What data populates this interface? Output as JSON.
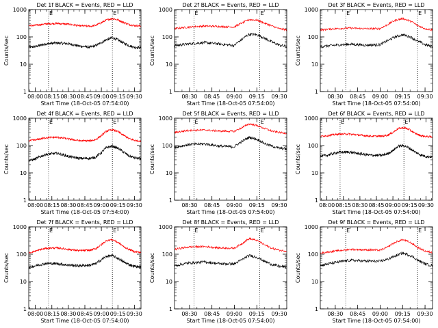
{
  "figure": {
    "xlabel": "Start Time (18-Oct-05 07:54:00)",
    "ylabel": "Counts/sec",
    "colors": {
      "events": "#000000",
      "lld": "#ff0000",
      "axes": "#000000",
      "background": "#ffffff"
    }
  },
  "chart_data": [
    {
      "type": "line",
      "title": "Det 1f BLACK = Events, RED = LLD",
      "xlabel": "Start Time (18-Oct-05 07:54:00)",
      "ylabel": "Counts/sec",
      "xlim": [
        "07:54",
        "09:36"
      ],
      "ylim": [
        1,
        1000
      ],
      "yscale": "log",
      "xticks": [
        "08:00",
        "08:15",
        "08:30",
        "08:45",
        "09:00",
        "09:15",
        "09:30"
      ],
      "yticks": [
        "1",
        "10",
        "100",
        "1000"
      ],
      "markers": [
        {
          "time": "08:12",
          "label": "E"
        },
        {
          "time": "09:10",
          "label": "E"
        }
      ],
      "x": [
        "07:54",
        "08:00",
        "08:10",
        "08:20",
        "08:30",
        "08:40",
        "08:50",
        "08:55",
        "09:00",
        "09:05",
        "09:10",
        "09:15",
        "09:20",
        "09:25",
        "09:30",
        "09:36"
      ],
      "series": [
        {
          "name": "Events",
          "color": "#000000",
          "values": [
            42,
            44,
            56,
            60,
            56,
            46,
            42,
            48,
            62,
            80,
            92,
            78,
            60,
            48,
            42,
            40
          ]
        },
        {
          "name": "LLD",
          "color": "#ff0000",
          "values": [
            255,
            265,
            300,
            310,
            290,
            255,
            245,
            265,
            330,
            420,
            470,
            420,
            340,
            285,
            260,
            250
          ]
        }
      ]
    },
    {
      "type": "line",
      "title": "Det 2f BLACK = Events, RED = LLD",
      "xlabel": "Start Time (18-Oct-05 07:54:00)",
      "ylabel": "Counts/sec",
      "xlim": [
        "08:20",
        "09:35"
      ],
      "ylim": [
        1,
        1000
      ],
      "yscale": "log",
      "xticks": [
        "08:30",
        "08:45",
        "09:00",
        "09:15",
        "09:30"
      ],
      "yticks": [
        "1",
        "10",
        "100",
        "1000"
      ],
      "markers": [
        {
          "time": "08:33",
          "label": "E"
        },
        {
          "time": "09:17",
          "label": "E"
        }
      ],
      "x": [
        "08:20",
        "08:30",
        "08:40",
        "08:50",
        "09:00",
        "09:05",
        "09:10",
        "09:15",
        "09:20",
        "09:25",
        "09:30",
        "09:35"
      ],
      "series": [
        {
          "name": "Events",
          "color": "#000000",
          "values": [
            48,
            56,
            62,
            55,
            48,
            80,
            125,
            120,
            90,
            65,
            50,
            44
          ]
        },
        {
          "name": "LLD",
          "color": "#ff0000",
          "values": [
            200,
            230,
            250,
            240,
            230,
            320,
            430,
            410,
            320,
            250,
            200,
            180
          ]
        }
      ]
    },
    {
      "type": "line",
      "title": "Det 3f BLACK = Events, RED = LLD",
      "xlabel": "Start Time (18-Oct-05 07:54:00)",
      "ylabel": "Counts/sec",
      "xlim": [
        "08:20",
        "09:35"
      ],
      "ylim": [
        1,
        1000
      ],
      "yscale": "log",
      "xticks": [
        "08:30",
        "08:45",
        "09:00",
        "09:15",
        "09:30"
      ],
      "yticks": [
        "1",
        "10",
        "100",
        "1000"
      ],
      "markers": [
        {
          "time": "08:37",
          "label": "E"
        },
        {
          "time": "09:25",
          "label": "E"
        }
      ],
      "x": [
        "08:20",
        "08:30",
        "08:40",
        "08:50",
        "09:00",
        "09:05",
        "09:10",
        "09:15",
        "09:20",
        "09:25",
        "09:30",
        "09:35"
      ],
      "series": [
        {
          "name": "Events",
          "color": "#000000",
          "values": [
            44,
            50,
            54,
            50,
            52,
            72,
            100,
            120,
            100,
            70,
            52,
            44
          ]
        },
        {
          "name": "LLD",
          "color": "#ff0000",
          "values": [
            180,
            200,
            210,
            200,
            200,
            280,
            400,
            470,
            380,
            260,
            200,
            180
          ]
        }
      ]
    },
    {
      "type": "line",
      "title": "Det 4f BLACK = Events, RED = LLD",
      "xlabel": "Start Time (18-Oct-05 07:54:00)",
      "ylabel": "Counts/sec",
      "xlim": [
        "07:54",
        "09:36"
      ],
      "ylim": [
        1,
        1000
      ],
      "yscale": "log",
      "xticks": [
        "08:00",
        "08:15",
        "08:30",
        "08:45",
        "09:00",
        "09:15",
        "09:30"
      ],
      "yticks": [
        "1",
        "10",
        "100",
        "1000"
      ],
      "markers": [
        {
          "time": "08:12",
          "label": "E"
        },
        {
          "time": "09:10",
          "label": "E"
        }
      ],
      "x": [
        "07:54",
        "08:00",
        "08:10",
        "08:20",
        "08:30",
        "08:40",
        "08:50",
        "08:55",
        "09:00",
        "09:05",
        "09:10",
        "09:15",
        "09:20",
        "09:25",
        "09:30",
        "09:36"
      ],
      "series": [
        {
          "name": "Events",
          "color": "#000000",
          "values": [
            28,
            32,
            48,
            52,
            40,
            34,
            34,
            38,
            55,
            85,
            95,
            80,
            58,
            42,
            36,
            32
          ]
        },
        {
          "name": "LLD",
          "color": "#ff0000",
          "values": [
            150,
            160,
            195,
            200,
            175,
            150,
            150,
            165,
            230,
            340,
            380,
            320,
            240,
            180,
            155,
            145
          ]
        }
      ]
    },
    {
      "type": "line",
      "title": "Det 5f BLACK = Events, RED = LLD",
      "xlabel": "Start Time (18-Oct-05 07:54:00)",
      "ylabel": "Counts/sec",
      "xlim": [
        "08:20",
        "09:35"
      ],
      "ylim": [
        1,
        1000
      ],
      "yscale": "log",
      "xticks": [
        "08:30",
        "08:45",
        "09:00",
        "09:15",
        "09:30"
      ],
      "yticks": [
        "1",
        "10",
        "100",
        "1000"
      ],
      "markers": [
        {
          "time": "08:33",
          "label": "E"
        },
        {
          "time": "09:17",
          "label": "E"
        }
      ],
      "x": [
        "08:20",
        "08:30",
        "08:40",
        "08:50",
        "09:00",
        "09:05",
        "09:10",
        "09:15",
        "09:20",
        "09:25",
        "09:30",
        "09:35"
      ],
      "series": [
        {
          "name": "Events",
          "color": "#000000",
          "values": [
            85,
            110,
            115,
            95,
            90,
            140,
            200,
            170,
            120,
            95,
            80,
            75
          ]
        },
        {
          "name": "LLD",
          "color": "#ff0000",
          "values": [
            300,
            360,
            370,
            340,
            330,
            450,
            620,
            540,
            420,
            340,
            300,
            280
          ]
        }
      ]
    },
    {
      "type": "line",
      "title": "Det 6f BLACK = Events, RED = LLD",
      "xlabel": "Start Time (18-Oct-05 07:54:00)",
      "ylabel": "Counts/sec",
      "xlim": [
        "07:54",
        "09:36"
      ],
      "ylim": [
        1,
        1000
      ],
      "yscale": "log",
      "xticks": [
        "08:00",
        "08:15",
        "08:30",
        "08:45",
        "09:00",
        "09:15",
        "09:30"
      ],
      "yticks": [
        "1",
        "10",
        "100",
        "1000"
      ],
      "markers": [
        {
          "time": "08:12",
          "label": "E"
        },
        {
          "time": "09:10",
          "label": "E"
        }
      ],
      "x": [
        "07:54",
        "08:00",
        "08:10",
        "08:20",
        "08:30",
        "08:40",
        "08:50",
        "08:55",
        "09:00",
        "09:05",
        "09:10",
        "09:15",
        "09:20",
        "09:25",
        "09:30",
        "09:36"
      ],
      "series": [
        {
          "name": "Events",
          "color": "#000000",
          "values": [
            40,
            44,
            56,
            58,
            50,
            44,
            44,
            50,
            65,
            95,
            100,
            80,
            58,
            46,
            40,
            38
          ]
        },
        {
          "name": "LLD",
          "color": "#ff0000",
          "values": [
            220,
            230,
            260,
            265,
            240,
            220,
            220,
            240,
            300,
            420,
            450,
            380,
            280,
            230,
            215,
            205
          ]
        }
      ]
    },
    {
      "type": "line",
      "title": "Det 7f BLACK = Events, RED = LLD",
      "xlabel": "Start Time (18-Oct-05 07:54:00)",
      "ylabel": "Counts/sec",
      "xlim": [
        "07:54",
        "09:36"
      ],
      "ylim": [
        1,
        1000
      ],
      "yscale": "log",
      "xticks": [
        "08:00",
        "08:15",
        "08:30",
        "08:45",
        "09:00",
        "09:15",
        "09:30"
      ],
      "yticks": [
        "1",
        "10",
        "100",
        "1000"
      ],
      "markers": [
        {
          "time": "08:12",
          "label": "E"
        },
        {
          "time": "09:10",
          "label": "E"
        }
      ],
      "x": [
        "07:54",
        "08:00",
        "08:10",
        "08:20",
        "08:30",
        "08:40",
        "08:50",
        "08:55",
        "09:00",
        "09:05",
        "09:10",
        "09:15",
        "09:20",
        "09:25",
        "09:30",
        "09:36"
      ],
      "series": [
        {
          "name": "Events",
          "color": "#000000",
          "values": [
            32,
            38,
            46,
            45,
            40,
            38,
            40,
            45,
            62,
            85,
            88,
            70,
            52,
            42,
            36,
            34
          ]
        },
        {
          "name": "LLD",
          "color": "#ff0000",
          "values": [
            110,
            130,
            165,
            170,
            150,
            135,
            140,
            160,
            220,
            320,
            340,
            270,
            190,
            150,
            125,
            115
          ]
        }
      ]
    },
    {
      "type": "line",
      "title": "Det 8f BLACK = Events, RED = LLD",
      "xlabel": "Start Time (18-Oct-05 07:54:00)",
      "ylabel": "Counts/sec",
      "xlim": [
        "08:20",
        "09:35"
      ],
      "ylim": [
        1,
        1000
      ],
      "yscale": "log",
      "xticks": [
        "08:30",
        "08:45",
        "09:00",
        "09:15",
        "09:30"
      ],
      "yticks": [
        "1",
        "10",
        "100",
        "1000"
      ],
      "markers": [
        {
          "time": "08:33",
          "label": "E"
        },
        {
          "time": "09:17",
          "label": "E"
        }
      ],
      "x": [
        "08:20",
        "08:30",
        "08:40",
        "08:50",
        "09:00",
        "09:05",
        "09:10",
        "09:15",
        "09:20",
        "09:25",
        "09:30",
        "09:35"
      ],
      "series": [
        {
          "name": "Events",
          "color": "#000000",
          "values": [
            38,
            48,
            52,
            45,
            44,
            62,
            90,
            78,
            55,
            42,
            36,
            34
          ]
        },
        {
          "name": "LLD",
          "color": "#ff0000",
          "values": [
            150,
            185,
            190,
            170,
            165,
            240,
            370,
            320,
            220,
            165,
            140,
            130
          ]
        }
      ]
    },
    {
      "type": "line",
      "title": "Det 9f BLACK = Events, RED = LLD",
      "xlabel": "Start Time (18-Oct-05 07:54:00)",
      "ylabel": "Counts/sec",
      "xlim": [
        "08:20",
        "09:35"
      ],
      "ylim": [
        1,
        1000
      ],
      "yscale": "log",
      "xticks": [
        "08:30",
        "08:45",
        "09:00",
        "09:15",
        "09:30"
      ],
      "yticks": [
        "1",
        "10",
        "100",
        "1000"
      ],
      "markers": [
        {
          "time": "08:37",
          "label": "E"
        },
        {
          "time": "09:25",
          "label": "E"
        }
      ],
      "x": [
        "08:20",
        "08:30",
        "08:40",
        "08:50",
        "09:00",
        "09:05",
        "09:10",
        "09:15",
        "09:20",
        "09:25",
        "09:30",
        "09:35"
      ],
      "series": [
        {
          "name": "Events",
          "color": "#000000",
          "values": [
            38,
            50,
            60,
            56,
            55,
            65,
            85,
            110,
            90,
            60,
            44,
            38
          ]
        },
        {
          "name": "LLD",
          "color": "#ff0000",
          "values": [
            110,
            130,
            150,
            145,
            140,
            180,
            270,
            340,
            270,
            175,
            130,
            115
          ]
        }
      ]
    }
  ]
}
